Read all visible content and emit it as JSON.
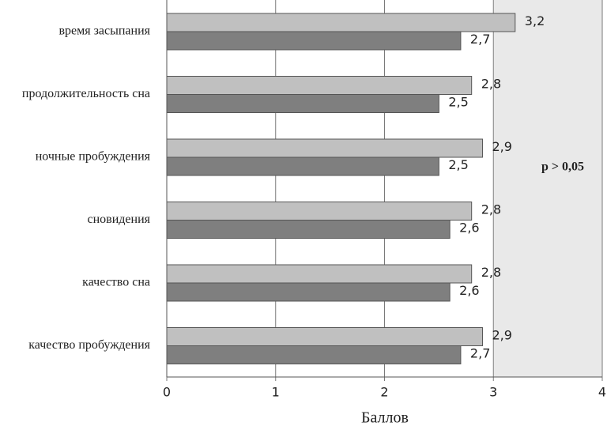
{
  "chart_data": {
    "type": "bar",
    "orientation": "horizontal",
    "categories": [
      "время засыпания",
      "продолжительность сна",
      "ночные пробуждения",
      "сновидения",
      "качество сна",
      "качество пробуждения"
    ],
    "series": [
      {
        "color": "#c0c0c0",
        "values": [
          3.2,
          2.8,
          2.9,
          2.8,
          2.8,
          2.9
        ],
        "value_labels": [
          "3,2",
          "2,8",
          "2,9",
          "2,8",
          "2,8",
          "2,9"
        ]
      },
      {
        "color": "#7f7f7f",
        "values": [
          2.7,
          2.5,
          2.5,
          2.6,
          2.6,
          2.7
        ],
        "value_labels": [
          "2,7",
          "2,5",
          "2,5",
          "2,6",
          "2,6",
          "2,7"
        ]
      }
    ],
    "xlabel": "Баллов",
    "xlim": [
      0,
      4
    ],
    "xticks": [
      0,
      1,
      2,
      3,
      4
    ],
    "grid": true,
    "annotation": "p > 0,05"
  }
}
